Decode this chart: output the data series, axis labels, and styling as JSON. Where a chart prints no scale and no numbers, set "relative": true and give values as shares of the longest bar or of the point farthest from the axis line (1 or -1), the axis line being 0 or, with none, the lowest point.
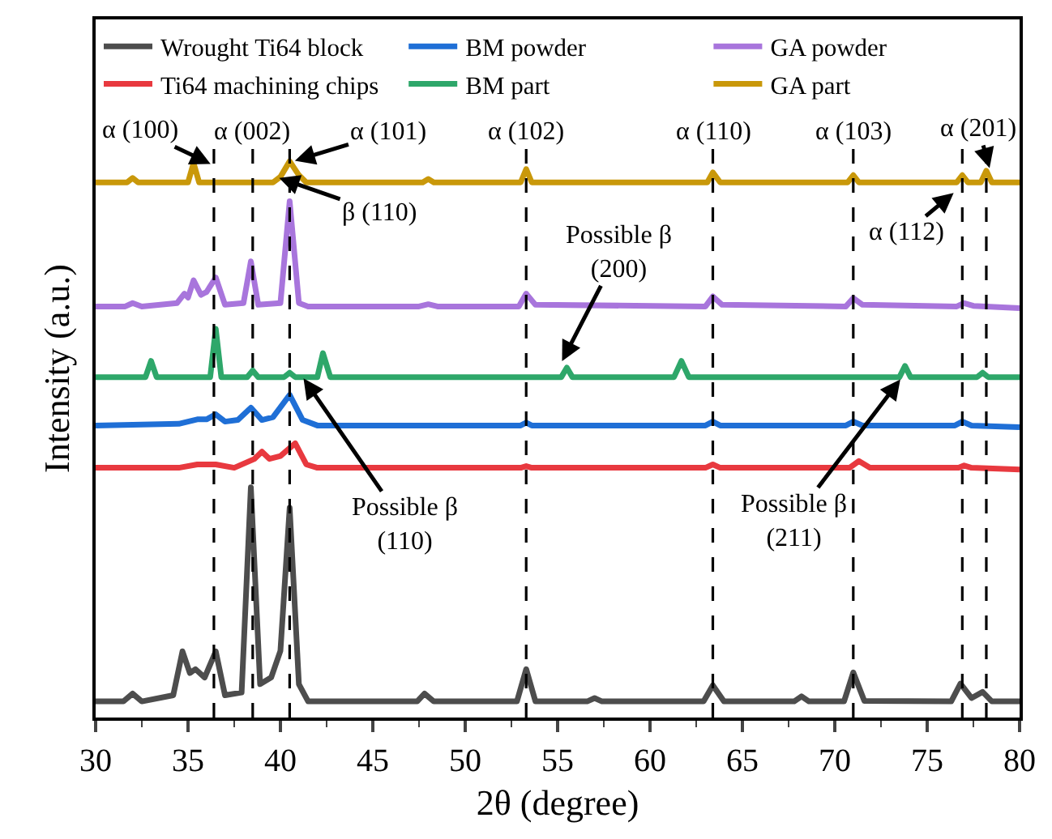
{
  "chart_data": {
    "type": "line",
    "relative": true,
    "xlabel": "2θ (degree)",
    "ylabel": "Intensity (a.u.)",
    "xlim": [
      30,
      80
    ],
    "xticks": [
      30,
      35,
      40,
      45,
      50,
      55,
      60,
      65,
      70,
      75,
      80
    ],
    "legend": "top",
    "line_style": "solid",
    "marker": "none",
    "series": [
      {
        "name": "Wrought Ti64 block",
        "color": "#4d4d4d",
        "x": [
          30,
          31.5,
          32,
          32.5,
          34.2,
          34.7,
          35.1,
          35.4,
          35.9,
          36.5,
          37.0,
          37.9,
          38.4,
          38.9,
          39.5,
          40.0,
          40.5,
          41.0,
          41.5,
          47.4,
          47.8,
          48.3,
          52.8,
          53.3,
          53.8,
          56.6,
          57,
          57.4,
          62.9,
          63.4,
          64.0,
          67.8,
          68.2,
          68.6,
          70.5,
          71.0,
          71.6,
          76.3,
          76.8,
          77.4,
          78.0,
          78.5,
          80
        ],
        "values": [
          0.029,
          0.029,
          0.043,
          0.029,
          0.04,
          0.119,
          0.08,
          0.087,
          0.072,
          0.119,
          0.04,
          0.045,
          0.414,
          0.06,
          0.072,
          0.12,
          0.377,
          0.06,
          0.029,
          0.029,
          0.043,
          0.029,
          0.029,
          0.087,
          0.029,
          0.029,
          0.035,
          0.029,
          0.029,
          0.058,
          0.029,
          0.029,
          0.038,
          0.029,
          0.029,
          0.081,
          0.03,
          0.029,
          0.061,
          0.035,
          0.046,
          0.029,
          0.029
        ]
      },
      {
        "name": "BM powder",
        "color": "#1f6fd6",
        "x": [
          30,
          34.5,
          35.5,
          36.0,
          36.5,
          37.0,
          37.7,
          38.4,
          39.0,
          39.6,
          40.5,
          41.2,
          42,
          53.0,
          53.3,
          53.6,
          63.0,
          63.4,
          63.8,
          70.6,
          71.0,
          71.5,
          76.5,
          76.9,
          77.4,
          80
        ],
        "values": [
          0.525,
          0.528,
          0.536,
          0.536,
          0.545,
          0.532,
          0.535,
          0.557,
          0.535,
          0.54,
          0.58,
          0.535,
          0.525,
          0.525,
          0.53,
          0.525,
          0.525,
          0.532,
          0.525,
          0.525,
          0.532,
          0.525,
          0.525,
          0.532,
          0.525,
          0.522
        ]
      },
      {
        "name": "GA powder",
        "color": "#a875dc",
        "x": [
          30,
          31.6,
          32.0,
          32.5,
          34.4,
          34.8,
          35.0,
          35.3,
          35.7,
          36.0,
          36.5,
          37.0,
          38.0,
          38.4,
          38.8,
          40.0,
          40.5,
          41.0,
          41.5,
          47.5,
          48.0,
          48.5,
          52.9,
          53.3,
          53.8,
          63.0,
          63.4,
          63.9,
          70.6,
          71.0,
          71.5,
          76.6,
          77.0,
          77.5,
          80
        ],
        "values": [
          0.739,
          0.739,
          0.745,
          0.739,
          0.745,
          0.762,
          0.755,
          0.786,
          0.76,
          0.765,
          0.791,
          0.742,
          0.745,
          0.82,
          0.742,
          0.745,
          0.928,
          0.745,
          0.739,
          0.739,
          0.743,
          0.739,
          0.739,
          0.762,
          0.742,
          0.739,
          0.757,
          0.742,
          0.739,
          0.754,
          0.742,
          0.739,
          0.745,
          0.74,
          0.736
        ]
      },
      {
        "name": "Ti64 machining chips",
        "color": "#e8393f",
        "x": [
          30,
          34.5,
          35.5,
          36.5,
          37.5,
          38.6,
          39.0,
          39.4,
          40.0,
          40.8,
          41.4,
          42,
          53.0,
          53.3,
          53.6,
          63.0,
          63.4,
          63.8,
          70.8,
          71.3,
          71.9,
          76.7,
          77.0,
          77.4,
          80
        ],
        "values": [
          0.449,
          0.449,
          0.455,
          0.455,
          0.449,
          0.465,
          0.478,
          0.465,
          0.47,
          0.493,
          0.455,
          0.449,
          0.449,
          0.452,
          0.449,
          0.449,
          0.455,
          0.449,
          0.449,
          0.461,
          0.449,
          0.449,
          0.453,
          0.449,
          0.446
        ]
      },
      {
        "name": "BM part",
        "color": "#2ea76a",
        "x": [
          30,
          32.7,
          33.0,
          33.3,
          36.2,
          36.5,
          36.8,
          38.2,
          38.5,
          38.8,
          40.2,
          40.5,
          40.8,
          42.0,
          42.3,
          42.7,
          55.2,
          55.5,
          55.8,
          61.3,
          61.7,
          62.1,
          73.5,
          73.8,
          74.1,
          77.7,
          78.0,
          78.3,
          80
        ],
        "values": [
          0.612,
          0.612,
          0.641,
          0.612,
          0.612,
          0.699,
          0.612,
          0.612,
          0.624,
          0.612,
          0.612,
          0.62,
          0.612,
          0.612,
          0.655,
          0.612,
          0.612,
          0.629,
          0.612,
          0.612,
          0.641,
          0.612,
          0.612,
          0.632,
          0.612,
          0.612,
          0.62,
          0.612,
          0.612
        ]
      },
      {
        "name": "GA part",
        "color": "#c9980a",
        "x": [
          30,
          31.7,
          32.0,
          32.3,
          35.0,
          35.3,
          35.6,
          39.6,
          40.0,
          40.5,
          41.0,
          41.4,
          47.7,
          48.0,
          48.3,
          53.0,
          53.3,
          53.6,
          63.1,
          63.4,
          63.8,
          70.7,
          71.0,
          71.3,
          76.6,
          76.9,
          77.2,
          77.9,
          78.2,
          78.5,
          80
        ],
        "values": [
          0.962,
          0.962,
          0.97,
          0.962,
          0.962,
          0.997,
          0.962,
          0.962,
          0.972,
          1.0,
          0.975,
          0.962,
          0.962,
          0.968,
          0.962,
          0.962,
          0.986,
          0.962,
          0.962,
          0.98,
          0.962,
          0.962,
          0.975,
          0.962,
          0.962,
          0.975,
          0.962,
          0.962,
          0.983,
          0.962,
          0.962
        ]
      }
    ],
    "ref_lines": [
      {
        "axis": "x",
        "value": 36.4,
        "line_style": "dashed",
        "color": "#000000"
      },
      {
        "axis": "x",
        "value": 38.5,
        "label": "α (002)",
        "line_style": "dashed",
        "color": "#000000"
      },
      {
        "axis": "x",
        "value": 40.5,
        "line_style": "dashed",
        "color": "#000000"
      },
      {
        "axis": "x",
        "value": 53.3,
        "label": "α (102)",
        "line_style": "dashed",
        "color": "#000000"
      },
      {
        "axis": "x",
        "value": 63.4,
        "label": "α (110)",
        "line_style": "dashed",
        "color": "#000000"
      },
      {
        "axis": "x",
        "value": 71.0,
        "label": "α (103)",
        "line_style": "dashed",
        "color": "#000000"
      },
      {
        "axis": "x",
        "value": 76.9,
        "line_style": "dashed",
        "color": "#000000"
      },
      {
        "axis": "x",
        "value": 78.2,
        "line_style": "dashed",
        "color": "#000000"
      }
    ],
    "annotations": [
      {
        "text": "α (100)",
        "x": 36.3,
        "y": 0.994
      },
      {
        "text": "α (101)",
        "x": 40.7,
        "y": 1.0
      },
      {
        "text": "α (201)",
        "x": 78.4,
        "y": 0.985
      },
      {
        "text": "β (110)",
        "x": 39.85,
        "y": 0.971
      },
      {
        "text": "α (112)",
        "x": 76.5,
        "y": 0.945
      },
      {
        "text": "Possible β (200)",
        "x": 55.2,
        "y": 0.638
      },
      {
        "text": "Possible β (110)",
        "x": 41.2,
        "y": 0.612
      },
      {
        "text": "Possible β (211)",
        "x": 73.6,
        "y": 0.61
      }
    ]
  }
}
